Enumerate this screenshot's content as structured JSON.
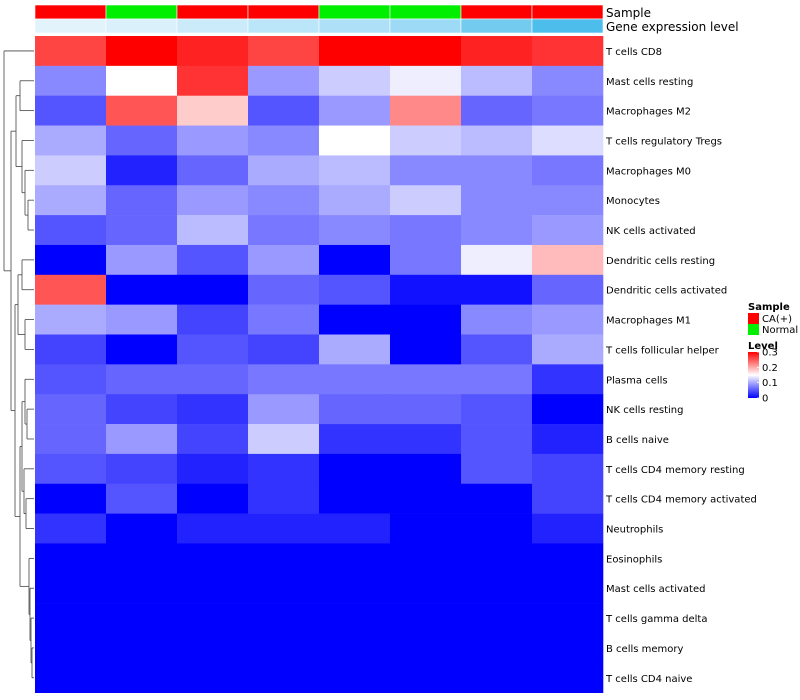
{
  "chart_data": {
    "type": "heatmap",
    "title": "",
    "annotation_tracks": [
      {
        "name": "Sample",
        "label": "Sample"
      },
      {
        "name": "Gene expression level",
        "label": "Gene expression level"
      }
    ],
    "columns": [
      {
        "sample": "CA(+)",
        "expr": 0.05
      },
      {
        "sample": "Normal",
        "expr": 0.1
      },
      {
        "sample": "CA(+)",
        "expr": 0.2
      },
      {
        "sample": "CA(+)",
        "expr": 0.3
      },
      {
        "sample": "Normal",
        "expr": 0.38
      },
      {
        "sample": "Normal",
        "expr": 0.5
      },
      {
        "sample": "CA(+)",
        "expr": 0.75
      },
      {
        "sample": "CA(+)",
        "expr": 1.0
      }
    ],
    "sample_colors": {
      "CA(+)": "#ff0000",
      "Normal": "#00ee00"
    },
    "expr_colors": {
      "low": "#eaf6fd",
      "high": "#4dbdec"
    },
    "rows": [
      "T cells CD8",
      "Mast cells resting",
      "Macrophages M2",
      "T cells regulatory  Tregs",
      "Macrophages M0",
      "Monocytes",
      "NK cells activated",
      "Dendritic cells resting",
      "Dendritic cells activated",
      "Macrophages M1",
      "T cells follicular helper",
      "Plasma cells",
      "NK cells resting",
      "B cells naive",
      "T cells CD4 memory resting",
      "T cells CD4 memory activated",
      "Neutrophils",
      "Eosinophils",
      "Mast cells activated",
      "T cells gamma delta",
      "B cells memory",
      "T cells CD4 naive"
    ],
    "values": [
      [
        0.26,
        0.3,
        0.28,
        0.26,
        0.3,
        0.3,
        0.28,
        0.27
      ],
      [
        0.08,
        0.15,
        0.27,
        0.09,
        0.12,
        0.14,
        0.11,
        0.08
      ],
      [
        0.05,
        0.25,
        0.18,
        0.05,
        0.09,
        0.22,
        0.06,
        0.07
      ],
      [
        0.1,
        0.06,
        0.09,
        0.08,
        0.15,
        0.12,
        0.11,
        0.13
      ],
      [
        0.12,
        0.02,
        0.06,
        0.1,
        0.11,
        0.08,
        0.08,
        0.07
      ],
      [
        0.1,
        0.06,
        0.09,
        0.08,
        0.1,
        0.12,
        0.08,
        0.08
      ],
      [
        0.05,
        0.06,
        0.11,
        0.07,
        0.08,
        0.07,
        0.08,
        0.09
      ],
      [
        0.0,
        0.09,
        0.05,
        0.09,
        0.0,
        0.07,
        0.14,
        0.19
      ],
      [
        0.25,
        0.0,
        0.0,
        0.06,
        0.05,
        0.01,
        0.01,
        0.06
      ],
      [
        0.1,
        0.09,
        0.04,
        0.07,
        0.0,
        0.0,
        0.08,
        0.09
      ],
      [
        0.04,
        0.0,
        0.05,
        0.04,
        0.1,
        0.0,
        0.05,
        0.1
      ],
      [
        0.05,
        0.06,
        0.06,
        0.07,
        0.07,
        0.07,
        0.07,
        0.03
      ],
      [
        0.06,
        0.04,
        0.03,
        0.09,
        0.06,
        0.06,
        0.05,
        0.0
      ],
      [
        0.06,
        0.09,
        0.04,
        0.12,
        0.03,
        0.03,
        0.05,
        0.02
      ],
      [
        0.05,
        0.04,
        0.02,
        0.03,
        0.0,
        0.0,
        0.05,
        0.04
      ],
      [
        0.0,
        0.05,
        0.0,
        0.03,
        0.0,
        0.0,
        0.0,
        0.04
      ],
      [
        0.03,
        0.0,
        0.02,
        0.02,
        0.02,
        0.0,
        0.0,
        0.02
      ],
      [
        0.0,
        0.0,
        0.0,
        0.0,
        0.0,
        0.0,
        0.0,
        0.0
      ],
      [
        0.0,
        0.0,
        0.0,
        0.0,
        0.0,
        0.0,
        0.0,
        0.0
      ],
      [
        0.0,
        0.0,
        0.0,
        0.0,
        0.0,
        0.0,
        0.0,
        0.0
      ],
      [
        0.0,
        0.0,
        0.0,
        0.0,
        0.0,
        0.0,
        0.0,
        0.0
      ],
      [
        0.0,
        0.0,
        0.0,
        0.0,
        0.0,
        0.0,
        0.0,
        0.0
      ]
    ],
    "color_scale": {
      "min": 0,
      "max": 0.3,
      "colors": [
        "#0000ff",
        "#ffffff",
        "#ff0000"
      ],
      "mid": 0.15
    },
    "legend": {
      "sample_title": "Sample",
      "sample_entries": [
        "CA(+)",
        "Normal"
      ],
      "level_title": "Level",
      "level_ticks": [
        "0.3",
        "0.2",
        "0.1",
        "0"
      ],
      "level_tick_values": [
        0.3,
        0.2,
        0.1,
        0
      ],
      "position": "right"
    },
    "row_dendrogram": "left"
  }
}
